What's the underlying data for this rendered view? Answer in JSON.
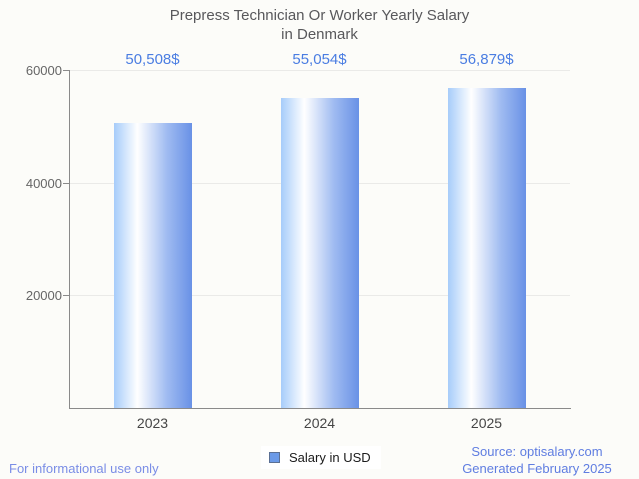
{
  "title": {
    "line1": "Prepress Technician Or Worker Yearly Salary",
    "line2": "in Denmark"
  },
  "chart_data": {
    "type": "bar",
    "title": "Prepress Technician Or Worker Yearly Salary in Denmark",
    "categories": [
      "2023",
      "2024",
      "2025"
    ],
    "series": [
      {
        "name": "Salary in USD",
        "values": [
          50508,
          55054,
          56879
        ],
        "value_labels": [
          "50,508$",
          "55,054$",
          "56,879$"
        ]
      }
    ],
    "xlabel": "",
    "ylabel": "",
    "ylim": [
      0,
      60000
    ],
    "yticks": [
      20000,
      40000,
      60000
    ],
    "ytick_labels": [
      "20000",
      "40000",
      "60000"
    ],
    "grid": true,
    "legend_position": "bottom-center",
    "colors": {
      "bar_gradient_left": "#a6ccfa",
      "bar_gradient_middle": "#ffffff",
      "bar_gradient_right": "#6991e6",
      "value_label": "#4a7de2",
      "axis": "#8a8a8a",
      "gridline": "#eaeae8",
      "background": "#fcfcf9"
    }
  },
  "legend": {
    "label": "Salary in USD",
    "swatch_fill": "#6b9ae8",
    "swatch_border": "#5b7094"
  },
  "footer": {
    "left": "For informational use only",
    "source": "Source: optisalary.com",
    "generated": "Generated February 2025"
  }
}
